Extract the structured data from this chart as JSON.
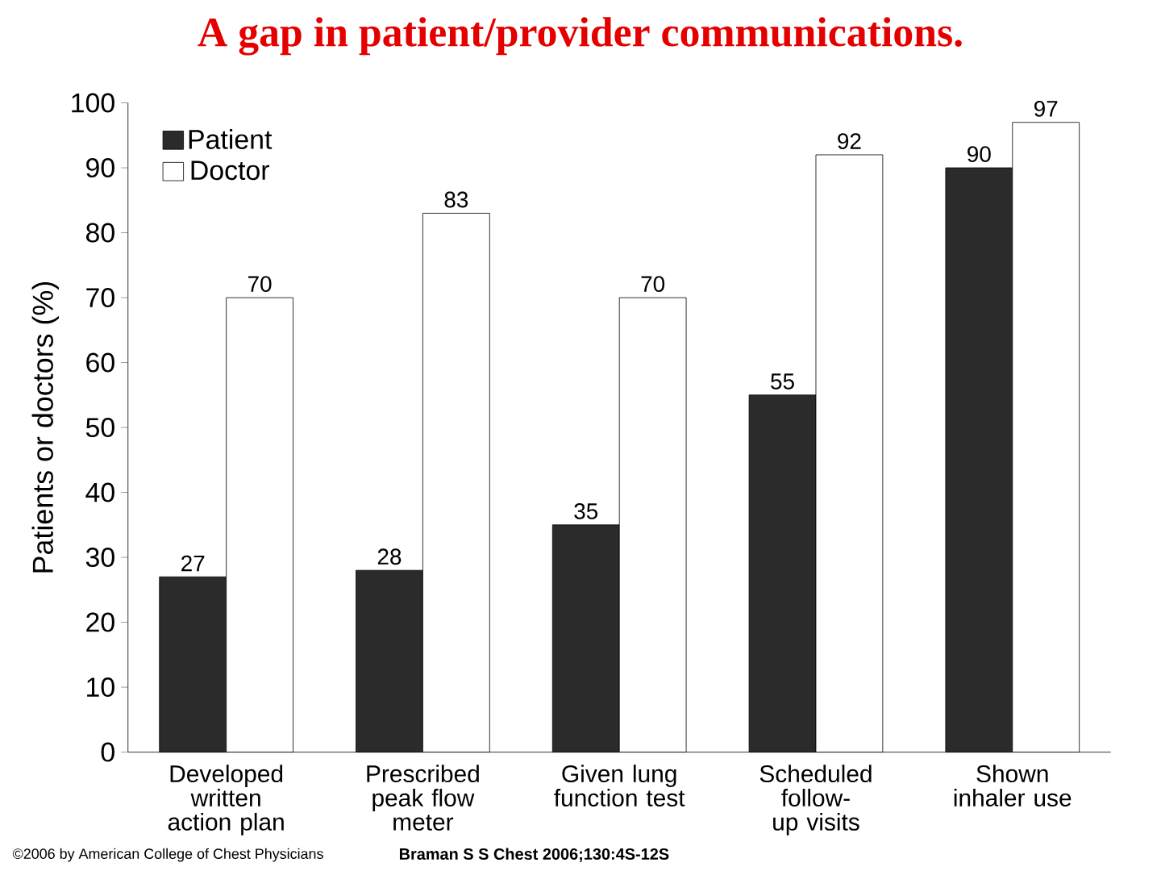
{
  "chart_data": {
    "type": "bar",
    "title": "A gap in patient/provider communications.",
    "ylabel": "Patients or doctors (%)",
    "categories": [
      "Developed written action plan",
      "Prescribed peak flow meter",
      "Given lung function test",
      "Scheduled follow-up visits",
      "Shown inhaler use"
    ],
    "series": [
      {
        "name": "Patient",
        "color": "#2b2b2b",
        "values": [
          27,
          28,
          35,
          55,
          90
        ]
      },
      {
        "name": "Doctor",
        "color": "#ffffff",
        "values": [
          70,
          83,
          70,
          92,
          97
        ]
      }
    ],
    "ylim": [
      0,
      100
    ],
    "yticks": [
      0,
      10,
      20,
      30,
      40,
      50,
      60,
      70,
      80,
      90,
      100
    ],
    "data_labels": true,
    "legend": "top left",
    "grid": false,
    "annotations": [
      "©2006 by American College of Chest Physicians",
      "Braman S S Chest 2006;130:4S-12S"
    ]
  }
}
